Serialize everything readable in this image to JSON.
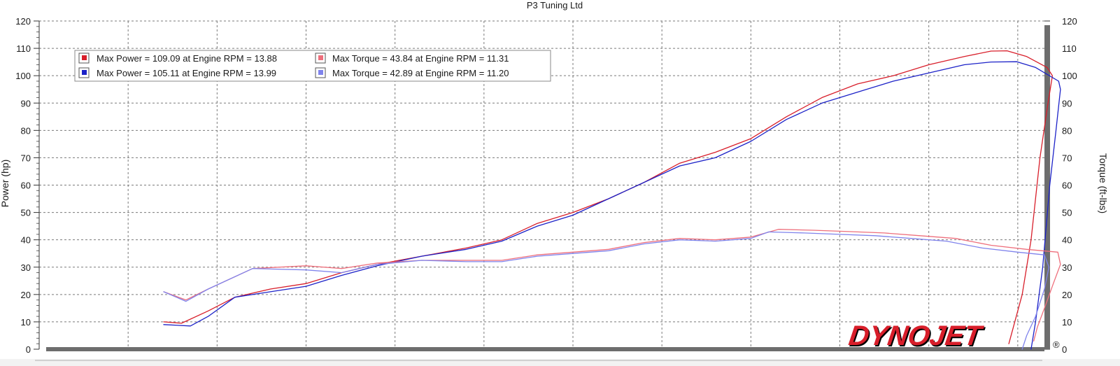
{
  "chart_data": {
    "type": "line",
    "title": "P3 Tuning Ltd",
    "ylabel_left": "Power (hp)",
    "ylabel_right": "Torque (ft-lbs)",
    "ylim_left": [
      0,
      120
    ],
    "ylim_right": [
      0,
      120
    ],
    "yticks": [
      0,
      10,
      20,
      30,
      40,
      50,
      60,
      70,
      80,
      90,
      100,
      110,
      120
    ],
    "xlim": [
      3,
      14.3
    ],
    "grid": true,
    "legend_placement": "top-left",
    "legend": [
      {
        "text": "Max Power = 109.09 at Engine RPM = 13.88",
        "color": "#d81e2a"
      },
      {
        "text": "Max Power = 105.11 at Engine RPM = 13.99",
        "color": "#1c22c8"
      },
      {
        "text": "Max Torque = 43.84 at Engine RPM = 11.31",
        "color": "#ee6f7c"
      },
      {
        "text": "Max Torque = 42.89 at Engine RPM = 11.20",
        "color": "#7f83ec"
      }
    ],
    "series": [
      {
        "axis": "left",
        "color": "#d81e2a",
        "points": [
          [
            4.4,
            10
          ],
          [
            4.6,
            9.5
          ],
          [
            4.9,
            14
          ],
          [
            5.2,
            19
          ],
          [
            5.6,
            22
          ],
          [
            6.0,
            24
          ],
          [
            6.4,
            28
          ],
          [
            6.8,
            31
          ],
          [
            7.3,
            34
          ],
          [
            7.8,
            37
          ],
          [
            8.2,
            40
          ],
          [
            8.6,
            46
          ],
          [
            9.0,
            50
          ],
          [
            9.4,
            55
          ],
          [
            9.8,
            61
          ],
          [
            10.2,
            68
          ],
          [
            10.6,
            72
          ],
          [
            11.0,
            77
          ],
          [
            11.4,
            85
          ],
          [
            11.8,
            92
          ],
          [
            12.2,
            97
          ],
          [
            12.6,
            100
          ],
          [
            13.0,
            104
          ],
          [
            13.4,
            107
          ],
          [
            13.7,
            109
          ],
          [
            13.88,
            109.1
          ],
          [
            14.1,
            107
          ],
          [
            14.33,
            103
          ],
          [
            14.39,
            100
          ],
          [
            14.34,
            90
          ],
          [
            14.25,
            70
          ],
          [
            14.15,
            40
          ],
          [
            14.05,
            20
          ],
          [
            13.95,
            8
          ],
          [
            13.9,
            2
          ]
        ]
      },
      {
        "axis": "left",
        "color": "#1c22c8",
        "points": [
          [
            4.4,
            9
          ],
          [
            4.7,
            8.5
          ],
          [
            4.9,
            12
          ],
          [
            5.2,
            19
          ],
          [
            5.6,
            21
          ],
          [
            6.0,
            23
          ],
          [
            6.4,
            27
          ],
          [
            6.8,
            30.5
          ],
          [
            7.3,
            34
          ],
          [
            7.8,
            36.5
          ],
          [
            8.2,
            39.5
          ],
          [
            8.6,
            45
          ],
          [
            9.0,
            49
          ],
          [
            9.4,
            55
          ],
          [
            9.8,
            61
          ],
          [
            10.2,
            67
          ],
          [
            10.6,
            70
          ],
          [
            11.0,
            76
          ],
          [
            11.4,
            84
          ],
          [
            11.8,
            90
          ],
          [
            12.2,
            94
          ],
          [
            12.6,
            98
          ],
          [
            13.0,
            101
          ],
          [
            13.4,
            104
          ],
          [
            13.7,
            105
          ],
          [
            13.99,
            105.1
          ],
          [
            14.2,
            103
          ],
          [
            14.46,
            98
          ],
          [
            14.48,
            95
          ],
          [
            14.43,
            80
          ],
          [
            14.36,
            60
          ],
          [
            14.28,
            30
          ],
          [
            14.2,
            10
          ],
          [
            14.15,
            0
          ]
        ]
      },
      {
        "axis": "right",
        "color": "#ee6f7c",
        "points": [
          [
            4.4,
            21
          ],
          [
            4.65,
            18
          ],
          [
            4.9,
            22
          ],
          [
            5.4,
            29.5
          ],
          [
            6.0,
            30.5
          ],
          [
            6.4,
            29.5
          ],
          [
            6.8,
            31.5
          ],
          [
            7.3,
            32.5
          ],
          [
            7.8,
            32.5
          ],
          [
            8.2,
            32.5
          ],
          [
            8.6,
            34.5
          ],
          [
            9.0,
            35.5
          ],
          [
            9.4,
            36.5
          ],
          [
            9.8,
            39
          ],
          [
            10.2,
            40.5
          ],
          [
            10.6,
            40
          ],
          [
            11.0,
            41
          ],
          [
            11.31,
            43.84
          ],
          [
            11.7,
            43.5
          ],
          [
            12.1,
            43
          ],
          [
            12.5,
            42.5
          ],
          [
            12.9,
            41.5
          ],
          [
            13.3,
            40.5
          ],
          [
            13.7,
            38
          ],
          [
            14.1,
            36.5
          ],
          [
            14.45,
            35.5
          ],
          [
            14.48,
            31
          ],
          [
            14.4,
            24
          ],
          [
            14.3,
            15
          ],
          [
            14.22,
            8
          ],
          [
            14.18,
            3
          ]
        ]
      },
      {
        "axis": "right",
        "color": "#7f83ec",
        "points": [
          [
            4.4,
            21
          ],
          [
            4.65,
            17.5
          ],
          [
            4.9,
            22
          ],
          [
            5.4,
            29.5
          ],
          [
            6.0,
            29
          ],
          [
            6.4,
            28
          ],
          [
            6.8,
            31
          ],
          [
            7.3,
            32.5
          ],
          [
            7.8,
            32
          ],
          [
            8.2,
            32
          ],
          [
            8.6,
            34
          ],
          [
            9.0,
            35
          ],
          [
            9.4,
            36
          ],
          [
            9.8,
            38.5
          ],
          [
            10.2,
            40
          ],
          [
            10.6,
            39.5
          ],
          [
            11.0,
            40.5
          ],
          [
            11.2,
            42.89
          ],
          [
            11.6,
            42.5
          ],
          [
            12.0,
            42
          ],
          [
            12.4,
            41.5
          ],
          [
            12.8,
            40.5
          ],
          [
            13.2,
            39.5
          ],
          [
            13.6,
            37
          ],
          [
            14.0,
            35.5
          ],
          [
            14.3,
            34.5
          ],
          [
            14.35,
            30
          ],
          [
            14.3,
            22
          ],
          [
            14.2,
            12
          ],
          [
            14.1,
            5
          ],
          [
            14.05,
            0
          ]
        ]
      }
    ]
  },
  "logo": {
    "text": "DYNOJET",
    "mark": "®",
    "color": "#d81e2a"
  }
}
